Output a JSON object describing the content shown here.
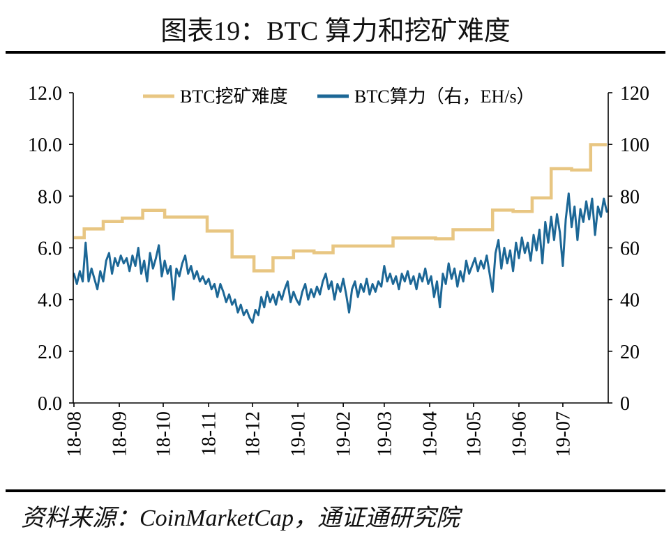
{
  "chart_data": {
    "type": "line",
    "title": "图表19：BTC 算力和挖矿难度",
    "xlabel": "",
    "ylabel": "",
    "x_axis": {
      "range": [
        "2018-08-01",
        "2019-08-01"
      ],
      "tick_labels": [
        "18-08",
        "18-09",
        "18-10",
        "18-11",
        "18-12",
        "19-01",
        "19-02",
        "19-03",
        "19-04",
        "19-05",
        "19-06",
        "19-07"
      ]
    },
    "y_axis_left": {
      "range": [
        0,
        12
      ],
      "tick_labels": [
        "0.0",
        "2.0",
        "4.0",
        "6.0",
        "8.0",
        "10.0",
        "12.0"
      ]
    },
    "y_axis_right": {
      "range": [
        0,
        120
      ],
      "tick_labels": [
        "0",
        "20",
        "40",
        "60",
        "80",
        "100",
        "120"
      ]
    },
    "grid": false,
    "legend": {
      "placement": "top-center"
    },
    "series": [
      {
        "name": "BTC挖矿难度",
        "axis": "left",
        "line_shape": "step",
        "color": "#E8C682",
        "x": [
          "2018-08-01",
          "2018-08-08",
          "2018-08-21",
          "2018-09-03",
          "2018-09-17",
          "2018-10-02",
          "2018-10-31",
          "2018-11-17",
          "2018-12-02",
          "2018-12-15",
          "2018-12-29",
          "2019-01-12",
          "2019-01-25",
          "2019-03-07",
          "2019-04-05",
          "2019-04-17",
          "2019-05-14",
          "2019-05-28",
          "2019-06-10",
          "2019-06-23",
          "2019-07-07",
          "2019-07-20",
          "2019-07-31"
        ],
        "values": [
          6.39,
          6.73,
          7.02,
          7.15,
          7.45,
          7.19,
          6.65,
          5.65,
          5.11,
          5.62,
          5.88,
          5.81,
          6.07,
          6.38,
          6.35,
          6.7,
          7.46,
          7.41,
          7.93,
          9.06,
          9.01,
          9.99,
          9.99
        ]
      },
      {
        "name": "BTC算力（右，EH/s）",
        "axis": "right",
        "line_shape": "line",
        "color": "#1C6796",
        "x": [
          "2018-08-01",
          "2018-08-03",
          "2018-08-05",
          "2018-08-07",
          "2018-08-09",
          "2018-08-11",
          "2018-08-13",
          "2018-08-15",
          "2018-08-17",
          "2018-08-19",
          "2018-08-21",
          "2018-08-23",
          "2018-08-25",
          "2018-08-27",
          "2018-08-29",
          "2018-08-31",
          "2018-09-02",
          "2018-09-04",
          "2018-09-06",
          "2018-09-08",
          "2018-09-10",
          "2018-09-12",
          "2018-09-14",
          "2018-09-16",
          "2018-09-18",
          "2018-09-20",
          "2018-09-22",
          "2018-09-24",
          "2018-09-26",
          "2018-09-28",
          "2018-09-30",
          "2018-10-02",
          "2018-10-04",
          "2018-10-06",
          "2018-10-08",
          "2018-10-10",
          "2018-10-12",
          "2018-10-14",
          "2018-10-16",
          "2018-10-18",
          "2018-10-20",
          "2018-10-22",
          "2018-10-24",
          "2018-10-26",
          "2018-10-28",
          "2018-10-30",
          "2018-11-01",
          "2018-11-03",
          "2018-11-05",
          "2018-11-07",
          "2018-11-09",
          "2018-11-11",
          "2018-11-13",
          "2018-11-15",
          "2018-11-17",
          "2018-11-19",
          "2018-11-21",
          "2018-11-23",
          "2018-11-25",
          "2018-11-27",
          "2018-11-29",
          "2018-12-01",
          "2018-12-03",
          "2018-12-05",
          "2018-12-07",
          "2018-12-09",
          "2018-12-11",
          "2018-12-13",
          "2018-12-15",
          "2018-12-17",
          "2018-12-19",
          "2018-12-21",
          "2018-12-23",
          "2018-12-25",
          "2018-12-27",
          "2018-12-29",
          "2018-12-31",
          "2019-01-02",
          "2019-01-04",
          "2019-01-06",
          "2019-01-08",
          "2019-01-10",
          "2019-01-12",
          "2019-01-14",
          "2019-01-16",
          "2019-01-18",
          "2019-01-20",
          "2019-01-22",
          "2019-01-24",
          "2019-01-26",
          "2019-01-28",
          "2019-01-30",
          "2019-02-01",
          "2019-02-03",
          "2019-02-05",
          "2019-02-07",
          "2019-02-09",
          "2019-02-11",
          "2019-02-13",
          "2019-02-15",
          "2019-02-17",
          "2019-02-19",
          "2019-02-21",
          "2019-02-23",
          "2019-02-25",
          "2019-02-27",
          "2019-03-01",
          "2019-03-03",
          "2019-03-05",
          "2019-03-07",
          "2019-03-09",
          "2019-03-11",
          "2019-03-13",
          "2019-03-15",
          "2019-03-17",
          "2019-03-19",
          "2019-03-21",
          "2019-03-23",
          "2019-03-25",
          "2019-03-27",
          "2019-03-29",
          "2019-03-31",
          "2019-04-02",
          "2019-04-04",
          "2019-04-06",
          "2019-04-08",
          "2019-04-10",
          "2019-04-12",
          "2019-04-14",
          "2019-04-16",
          "2019-04-18",
          "2019-04-20",
          "2019-04-22",
          "2019-04-24",
          "2019-04-26",
          "2019-04-28",
          "2019-04-30",
          "2019-05-02",
          "2019-05-04",
          "2019-05-06",
          "2019-05-08",
          "2019-05-10",
          "2019-05-12",
          "2019-05-14",
          "2019-05-16",
          "2019-05-18",
          "2019-05-20",
          "2019-05-22",
          "2019-05-24",
          "2019-05-26",
          "2019-05-28",
          "2019-05-30",
          "2019-06-01",
          "2019-06-03",
          "2019-06-05",
          "2019-06-07",
          "2019-06-09",
          "2019-06-11",
          "2019-06-13",
          "2019-06-15",
          "2019-06-17",
          "2019-06-19",
          "2019-06-21",
          "2019-06-23",
          "2019-06-25",
          "2019-06-27",
          "2019-06-29",
          "2019-07-01",
          "2019-07-03",
          "2019-07-05",
          "2019-07-07",
          "2019-07-09",
          "2019-07-11",
          "2019-07-13",
          "2019-07-15",
          "2019-07-17",
          "2019-07-19",
          "2019-07-21",
          "2019-07-23",
          "2019-07-25",
          "2019-07-27",
          "2019-07-29",
          "2019-07-31"
        ],
        "values": [
          50,
          46,
          51,
          47,
          62,
          47,
          52,
          48,
          44,
          51,
          47,
          55,
          58,
          50,
          56,
          53,
          57,
          54,
          56,
          51,
          57,
          53,
          60,
          50,
          55,
          47,
          58,
          52,
          56,
          61,
          49,
          55,
          50,
          53,
          40,
          52,
          49,
          54,
          57,
          50,
          53,
          48,
          51,
          47,
          49,
          46,
          48,
          44,
          46,
          41,
          46,
          43,
          39,
          42,
          38,
          40,
          35,
          38,
          34,
          36,
          33,
          31,
          36,
          34,
          41,
          37,
          43,
          39,
          42,
          38,
          43,
          40,
          44,
          47,
          39,
          43,
          40,
          38,
          43,
          46,
          40,
          44,
          41,
          45,
          42,
          47,
          50,
          44,
          47,
          40,
          46,
          43,
          48,
          42,
          35,
          44,
          47,
          41,
          46,
          43,
          48,
          42,
          46,
          43,
          47,
          45,
          53,
          47,
          50,
          46,
          49,
          44,
          50,
          47,
          51,
          46,
          49,
          44,
          50,
          47,
          52,
          46,
          49,
          41,
          47,
          37,
          50,
          46,
          54,
          48,
          52,
          45,
          51,
          47,
          55,
          50,
          53,
          56,
          51,
          55,
          52,
          57,
          50,
          43,
          58,
          63,
          52,
          60,
          54,
          59,
          51,
          62,
          56,
          64,
          58,
          62,
          55,
          65,
          59,
          67,
          54,
          70,
          62,
          72,
          63,
          73,
          66,
          53,
          71,
          81,
          68,
          76,
          63,
          75,
          70,
          78,
          71,
          79,
          65,
          76,
          72,
          79,
          74
        ]
      }
    ]
  },
  "source_note": "资料来源：CoinMarketCap，通证通研究院"
}
